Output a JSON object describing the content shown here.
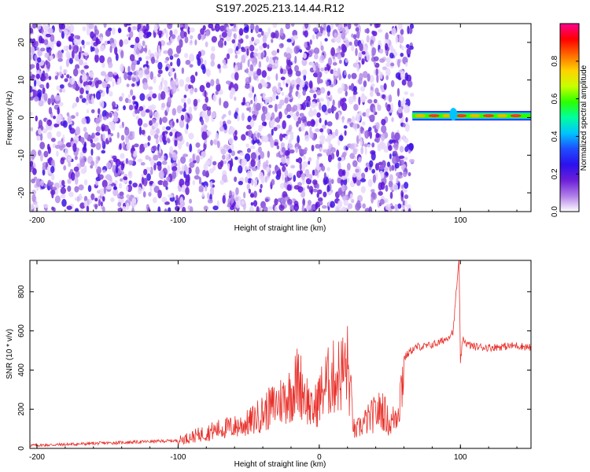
{
  "title": "S197.2025.213.14.44.R12",
  "chart_data": [
    {
      "type": "heatmap",
      "xlabel": "Height of straight line (km)",
      "ylabel": "Frequency (Hz)",
      "xlim": [
        -205,
        150
      ],
      "ylim": [
        -25,
        25
      ],
      "xticks": [
        -200,
        -100,
        0,
        100
      ],
      "yticks": [
        -20,
        -10,
        0,
        10,
        20
      ],
      "colorbar": {
        "label": "Normalized spectral amplitude",
        "range": [
          0,
          1
        ],
        "ticks": [
          "0.0",
          "0.2",
          "0.4",
          "0.6",
          "0.8"
        ],
        "colors": [
          "#ffffff",
          "#b07ee8",
          "#6c1fd8",
          "#2c10ee",
          "#1f4cff",
          "#00c4ff",
          "#00ffa0",
          "#2bff00",
          "#c8ff00",
          "#ffd200",
          "#ff6a00",
          "#ff0000",
          "#ff0090"
        ]
      },
      "regions": [
        {
          "x_range": [
            -205,
            66
          ],
          "description_values": {
            "mean_amplitude": 0.2,
            "peak_amplitude": 0.35
          }
        },
        {
          "x_range": [
            66,
            150
          ],
          "center_frequency_hz": 0.5,
          "peak_amplitude": 0.9
        }
      ]
    },
    {
      "type": "line",
      "xlabel": "Height of straight line (km)",
      "ylabel": "SNR (10 * v/v)",
      "xlim": [
        -205,
        150
      ],
      "ylim": [
        0,
        960
      ],
      "xticks": [
        -200,
        -100,
        0,
        100
      ],
      "yticks": [
        0,
        200,
        400,
        600,
        800
      ],
      "series": [
        {
          "color": "#e8302a",
          "x": [
            -205,
            -180,
            -160,
            -140,
            -120,
            -100,
            -90,
            -80,
            -70,
            -60,
            -50,
            -40,
            -30,
            -20,
            -15,
            -10,
            -5,
            0,
            5,
            10,
            15,
            20,
            25,
            30,
            35,
            40,
            45,
            50,
            55,
            58,
            60,
            65,
            70,
            75,
            80,
            85,
            90,
            95,
            97,
            99,
            100,
            102,
            105,
            110,
            120,
            130,
            140,
            150
          ],
          "y": [
            15,
            20,
            25,
            30,
            35,
            40,
            60,
            80,
            100,
            110,
            130,
            180,
            230,
            280,
            350,
            280,
            180,
            260,
            330,
            360,
            380,
            420,
            80,
            120,
            150,
            180,
            200,
            120,
            180,
            300,
            460,
            500,
            520,
            520,
            530,
            540,
            560,
            600,
            800,
            950,
            450,
            560,
            530,
            520,
            515,
            520,
            525,
            515
          ]
        }
      ]
    }
  ]
}
